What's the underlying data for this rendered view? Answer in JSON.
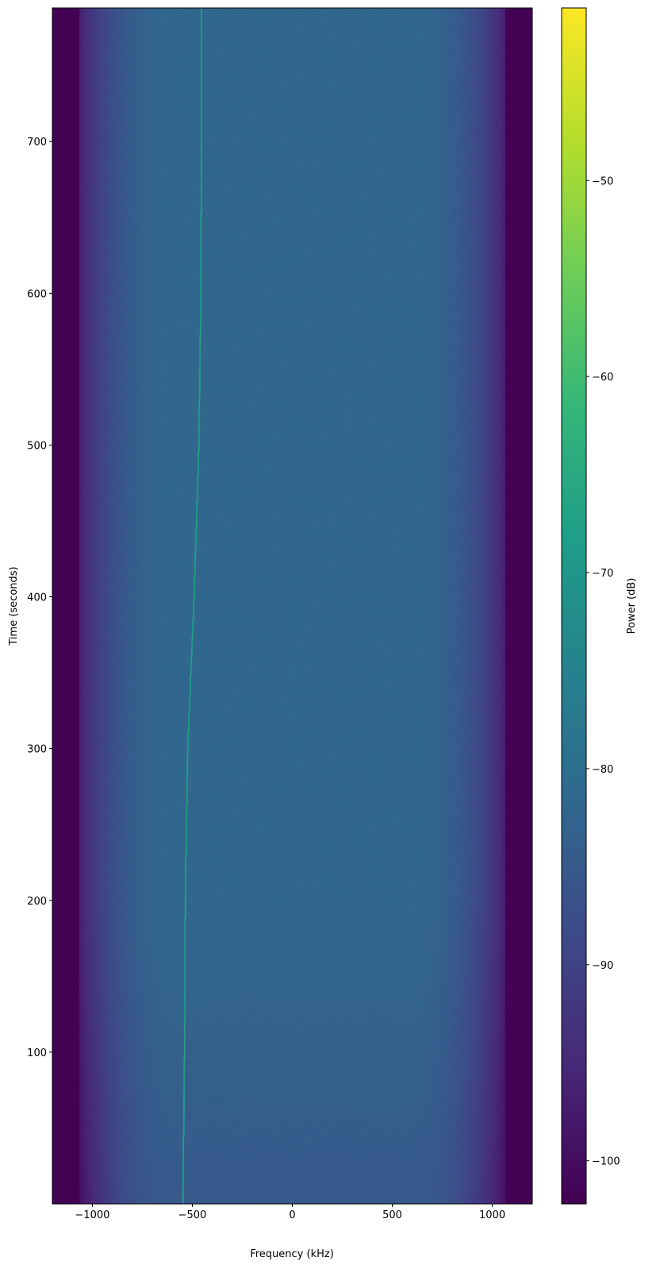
{
  "chart_data": {
    "type": "heatmap",
    "title": "",
    "xlabel": "Frequency (kHz)",
    "ylabel": "Time (seconds)",
    "colorbar_label": "Power (dB)",
    "colormap": "viridis",
    "xlim": [
      -1200,
      1200
    ],
    "ylim": [
      0,
      788
    ],
    "clim": [
      -102.2,
      -41.2
    ],
    "xticks": [
      -1000,
      -500,
      0,
      500,
      1000
    ],
    "xtick_labels": [
      "−1000",
      "−500",
      "0",
      "500",
      "1000"
    ],
    "yticks": [
      100,
      200,
      300,
      400,
      500,
      600,
      700
    ],
    "ytick_labels": [
      "100",
      "200",
      "300",
      "400",
      "500",
      "600",
      "700"
    ],
    "cticks": [
      -100,
      -90,
      -80,
      -70,
      -60,
      -50
    ],
    "ctick_labels": [
      "−100",
      "−90",
      "−80",
      "−70",
      "−60",
      "−50"
    ],
    "grid": false,
    "background_level_db": -82,
    "band_edge_khz": 1060,
    "out_of_band_db": -102,
    "signal_level_db": -65,
    "signal_track": [
      {
        "t": 0,
        "f": -548
      },
      {
        "t": 100,
        "f": -540
      },
      {
        "t": 200,
        "f": -536
      },
      {
        "t": 300,
        "f": -524
      },
      {
        "t": 400,
        "f": -492
      },
      {
        "t": 500,
        "f": -468
      },
      {
        "t": 600,
        "f": -458
      },
      {
        "t": 700,
        "f": -456
      },
      {
        "t": 788,
        "f": -455
      }
    ]
  }
}
